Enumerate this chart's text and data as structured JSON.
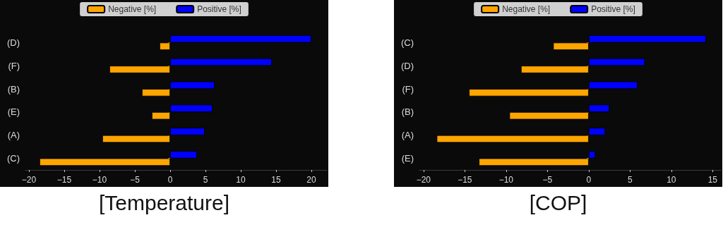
{
  "chart_data": [
    {
      "type": "bar",
      "orientation": "horizontal",
      "title": "[Temperature]",
      "categories": [
        "(D)",
        "(F)",
        "(B)",
        "(E)",
        "(A)",
        "(C)"
      ],
      "series": [
        {
          "name": "Negative [%]",
          "color": "#ffa500",
          "values": [
            -1.5,
            -8.6,
            -4.0,
            -2.6,
            -9.6,
            -18.5
          ]
        },
        {
          "name": "Positive [%]",
          "color": "#0000ff",
          "values": [
            20.0,
            14.4,
            6.3,
            6.0,
            4.9,
            3.8
          ]
        }
      ],
      "xlim": [
        -20.5,
        22.2
      ],
      "xticks": [
        -20,
        -15,
        -10,
        -5,
        0,
        5,
        10,
        15,
        20
      ],
      "grid": false,
      "legend": "top"
    },
    {
      "type": "bar",
      "orientation": "horizontal",
      "title": "[COP]",
      "categories": [
        "(C)",
        "(D)",
        "(F)",
        "(B)",
        "(A)",
        "(E)"
      ],
      "series": [
        {
          "name": "Negative [%]",
          "color": "#ffa500",
          "values": [
            -4.3,
            -8.2,
            -14.5,
            -9.6,
            -18.4,
            -13.3
          ]
        },
        {
          "name": "Positive [%]",
          "color": "#0000ff",
          "values": [
            14.2,
            6.8,
            5.9,
            2.5,
            2.0,
            0.8
          ]
        }
      ],
      "xlim": [
        -20.5,
        16
      ],
      "xticks": [
        -20,
        -15,
        -10,
        -5,
        0,
        5,
        10,
        15
      ],
      "grid": false,
      "legend": "top"
    }
  ]
}
